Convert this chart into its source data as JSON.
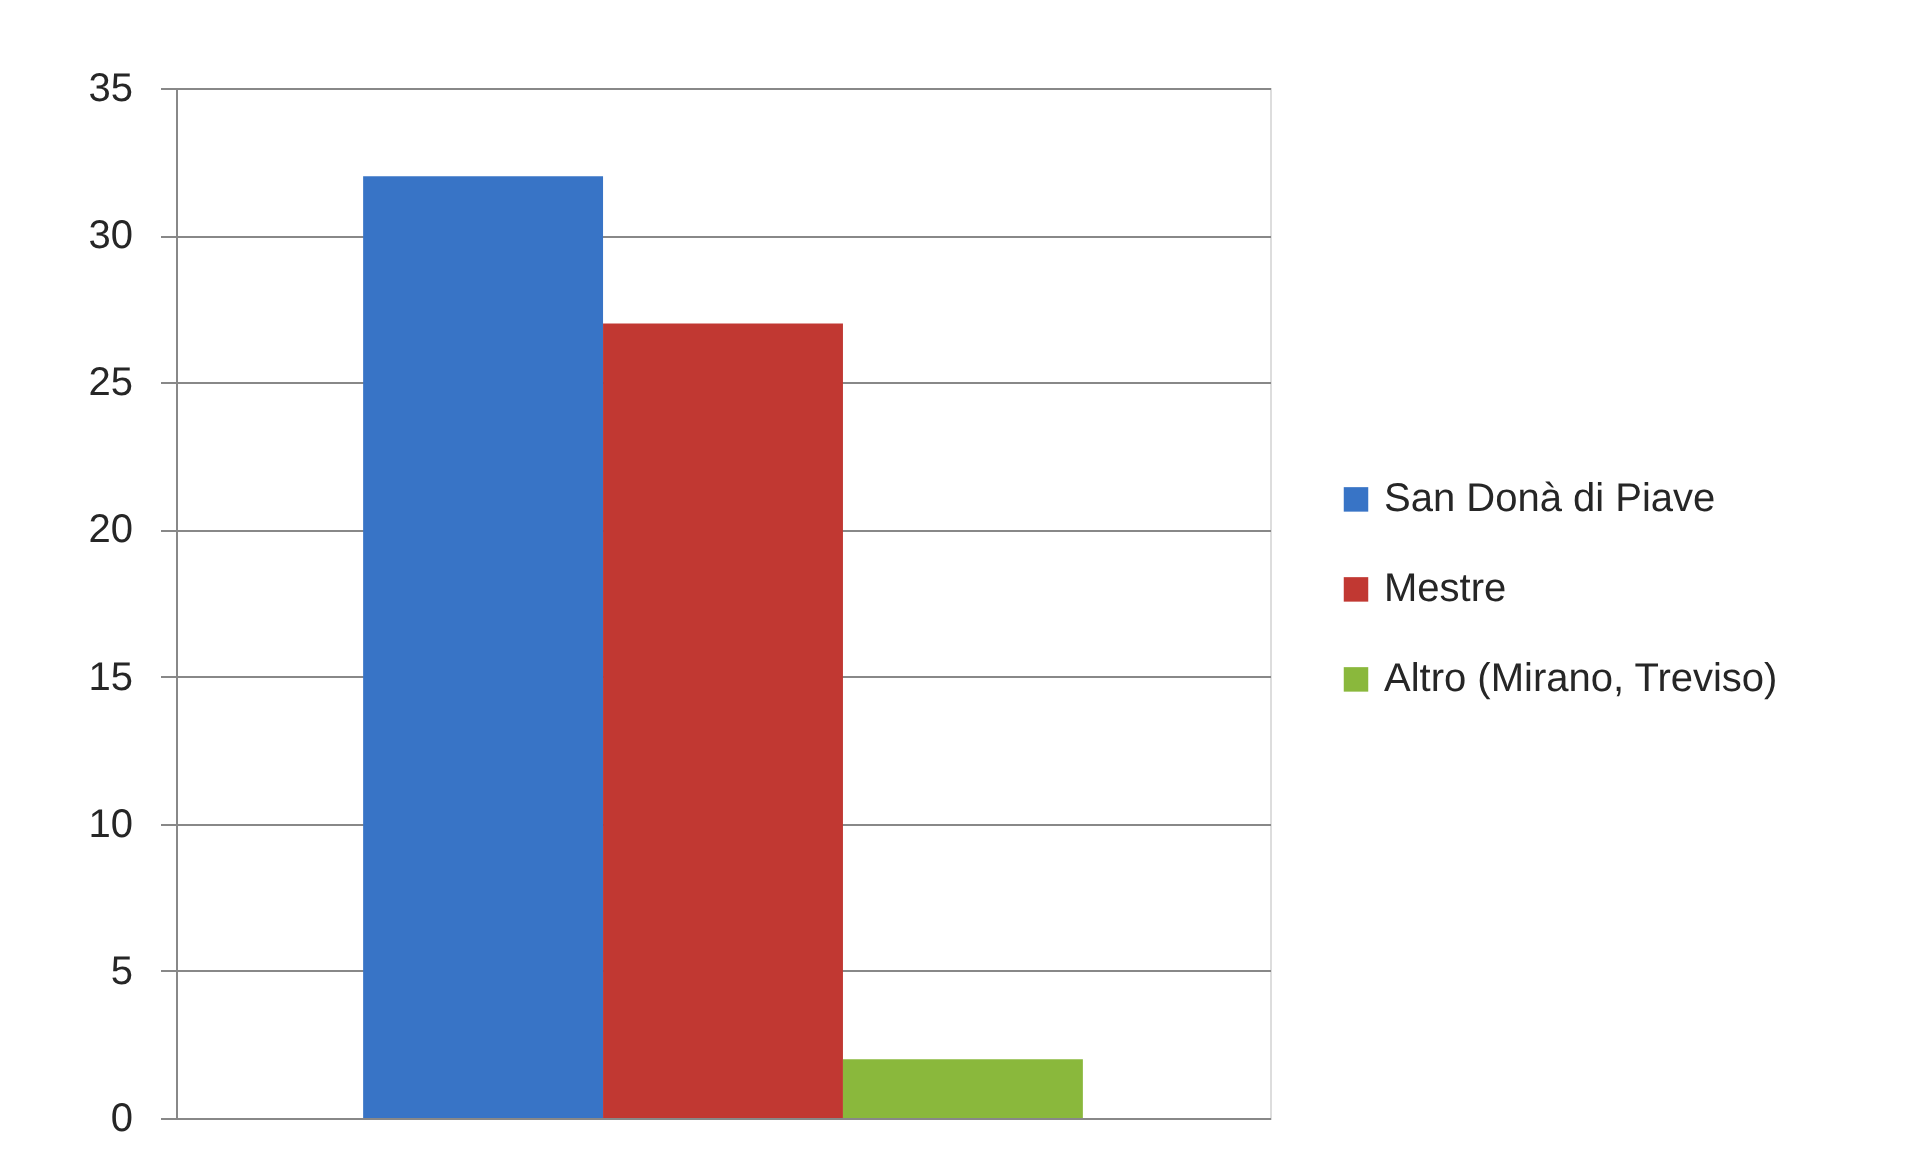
{
  "chart_data": {
    "type": "bar",
    "categories": [
      null
    ],
    "series": [
      {
        "name": "San Donà di Piave",
        "color": "#3874c6",
        "values": [
          32
        ]
      },
      {
        "name": "Mestre",
        "color": "#c13832",
        "values": [
          27
        ]
      },
      {
        "name": "Altro (Mirano, Treviso)",
        "color": "#8ab83c",
        "values": [
          2
        ]
      }
    ],
    "ylim": [
      0,
      35
    ],
    "yticks": [
      0,
      5,
      10,
      15,
      20,
      25,
      30,
      35
    ],
    "grid": "y",
    "legend": "right"
  }
}
